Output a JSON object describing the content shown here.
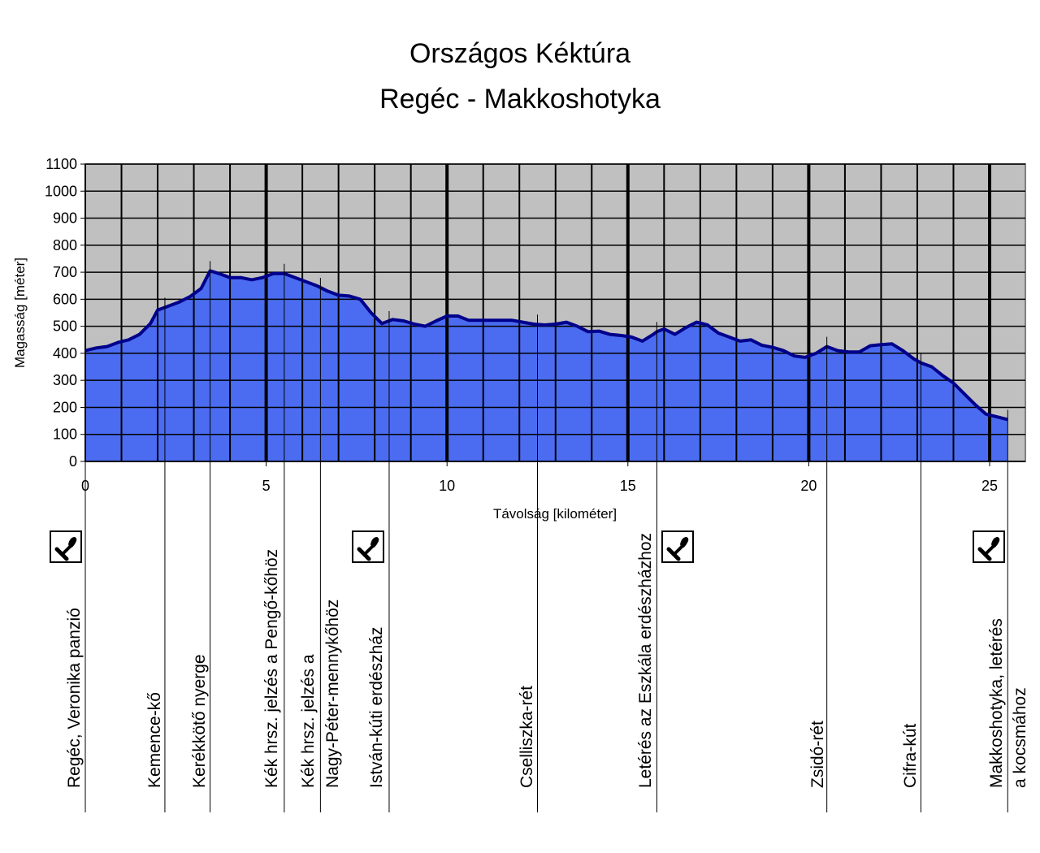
{
  "chart_data": {
    "type": "area",
    "title": "Országos Kéktúra",
    "subtitle": "Regéc - Makkoshotyka",
    "xlabel": "Távolság [kilométer]",
    "ylabel": "Magasság [méter]",
    "xlim": [
      0,
      26.5
    ],
    "ylim": [
      0,
      1100
    ],
    "x_ticks": [
      0,
      5,
      10,
      15,
      20,
      25
    ],
    "y_ticks": [
      0,
      100,
      200,
      300,
      400,
      500,
      600,
      700,
      800,
      900,
      1000,
      1100
    ],
    "grid": true,
    "plot_background": "#c0c0c0",
    "fill_color": "#4b6cf0",
    "line_color": "#00008b",
    "series": [
      {
        "name": "Magasság",
        "x": [
          0,
          0.3,
          0.6,
          0.9,
          1.2,
          1.5,
          1.8,
          2.0,
          2.3,
          2.6,
          2.9,
          3.2,
          3.45,
          3.7,
          4.0,
          4.3,
          4.6,
          4.9,
          5.2,
          5.5,
          5.8,
          6.1,
          6.4,
          6.7,
          7.0,
          7.3,
          7.6,
          7.9,
          8.2,
          8.5,
          8.8,
          9.1,
          9.4,
          9.7,
          10.0,
          10.3,
          10.6,
          10.9,
          11.2,
          11.5,
          11.8,
          12.1,
          12.4,
          12.7,
          13.0,
          13.3,
          13.6,
          13.9,
          14.2,
          14.5,
          14.8,
          15.1,
          15.4,
          15.7,
          15.8,
          16.0,
          16.3,
          16.6,
          16.9,
          17.2,
          17.5,
          17.8,
          18.1,
          18.4,
          18.7,
          19.0,
          19.3,
          19.6,
          19.9,
          20.2,
          20.5,
          20.8,
          21.1,
          21.4,
          21.7,
          22.0,
          22.3,
          22.6,
          22.9,
          23.1,
          23.4,
          23.7,
          24.0,
          24.3,
          24.6,
          24.9,
          25.2,
          25.5
        ],
        "y": [
          410,
          420,
          425,
          440,
          450,
          470,
          510,
          560,
          575,
          590,
          610,
          640,
          705,
          695,
          680,
          680,
          672,
          680,
          695,
          695,
          680,
          665,
          650,
          630,
          615,
          612,
          600,
          550,
          510,
          525,
          520,
          508,
          500,
          520,
          538,
          538,
          522,
          522,
          522,
          522,
          522,
          515,
          508,
          505,
          508,
          515,
          500,
          480,
          482,
          470,
          466,
          460,
          445,
          470,
          480,
          490,
          470,
          495,
          515,
          505,
          475,
          460,
          445,
          450,
          430,
          422,
          410,
          390,
          385,
          400,
          425,
          410,
          405,
          405,
          428,
          432,
          435,
          410,
          380,
          365,
          350,
          318,
          290,
          250,
          210,
          175,
          165,
          155
        ]
      }
    ],
    "stations": [
      {
        "km": 0.0,
        "name": "Regéc, Veronika panzió",
        "stamp": true
      },
      {
        "km": 2.2,
        "name": "Kemence-kő",
        "stamp": false
      },
      {
        "km": 3.45,
        "name": "Kerékkötő nyerge",
        "stamp": false
      },
      {
        "km": 5.5,
        "name": "Kék hrsz. jelzés a Pengő-kőhöz",
        "stamp": false
      },
      {
        "km": 6.5,
        "name": "Kék hrsz. jelzés a",
        "name2": "Nagy-Péter-mennykőhöz",
        "stamp": false
      },
      {
        "km": 8.4,
        "name": "István-kúti erdészház",
        "stamp": true
      },
      {
        "km": 12.5,
        "name": "Cselliszka-rét",
        "stamp": false
      },
      {
        "km": 15.8,
        "name": "Letérés az Eszkála erdészházhoz",
        "stamp": true
      },
      {
        "km": 20.5,
        "name": "Zsidó-rét",
        "stamp": false
      },
      {
        "km": 23.1,
        "name": "Cifra-kút",
        "stamp": false
      },
      {
        "km": 25.5,
        "name": "Makkoshotyka, letérés",
        "name2": "a kocsmához",
        "stamp": true
      }
    ]
  }
}
